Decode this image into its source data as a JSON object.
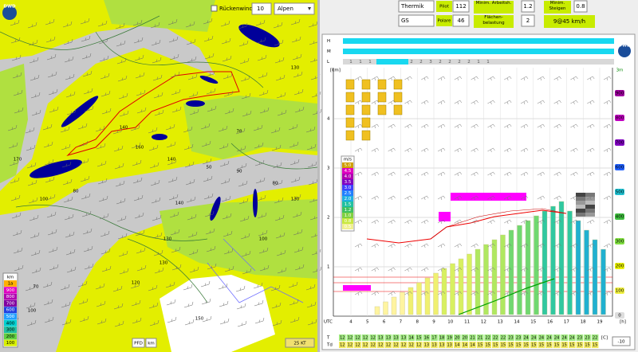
{
  "map": {
    "logo": "DWD",
    "tailwind": "Rückenwind",
    "spinner": "10",
    "region": "Alpen",
    "labels": [
      "80",
      "140",
      "100",
      "130",
      "70",
      "50",
      "170",
      "160",
      "140",
      "130",
      "80",
      "100",
      "150",
      "70",
      "130",
      "130",
      "100",
      "120",
      "140",
      "90"
    ],
    "legend_title": "km",
    "legend_levels": [
      "1a",
      "900",
      "800",
      "700",
      "600",
      "500",
      "400",
      "300",
      "200",
      "100"
    ],
    "pfd": "PFD",
    "unit": "km",
    "scale": "25 KT"
  },
  "toolbar": {
    "mode": "Thermik",
    "pilot_label": "Pilot",
    "pilot": "112",
    "min_work_label": "Minim. Arbeitsh.",
    "min_work": "1.2",
    "min_climb_label": "Minim. Steigen",
    "min_climb": "0.8",
    "glider": "GS",
    "polar_label": "Polare",
    "polar": "46",
    "wing_load_label": "Flächen-belastung",
    "wing_load": "2",
    "result": "9@45 km/h"
  },
  "chart": {
    "logo": "DWD",
    "rows": [
      "H",
      "M",
      "L"
    ],
    "low_cloud": [
      "1",
      "1",
      "1",
      "2",
      "2",
      "3",
      "2",
      "2",
      "2",
      "2",
      "1",
      "1"
    ],
    "y_unit": "[km]",
    "y_labels": [
      "1",
      "2",
      "3",
      "4"
    ],
    "y2_unit": "3m",
    "y2_labels": [
      "900",
      "800",
      "700",
      "600",
      "500",
      "400",
      "300",
      "200",
      "100",
      "0"
    ],
    "x_unit": "UTC",
    "x_labels": [
      "4",
      "5",
      "6",
      "7",
      "8",
      "9",
      "10",
      "11",
      "12",
      "13",
      "14",
      "15",
      "16",
      "17",
      "18",
      "19"
    ],
    "x_end": "[h]",
    "scale_title": "m/s",
    "scale_levels": [
      "5.0",
      "4.5",
      "4.0",
      "3.5",
      "3.0",
      "2.5",
      "2.0",
      "1.5",
      "1.2",
      "1.0",
      "0.8",
      "0.5"
    ],
    "t_label": "T",
    "td_label": "Td",
    "t": [
      "12",
      "12",
      "12",
      "12",
      "12",
      "13",
      "13",
      "13",
      "13",
      "14",
      "15",
      "16",
      "17",
      "18",
      "19",
      "20",
      "20",
      "21",
      "21",
      "22",
      "22",
      "22",
      "23",
      "23",
      "24",
      "24",
      "24",
      "24",
      "24",
      "24",
      "24",
      "23",
      "23",
      "22"
    ],
    "td": [
      "12",
      "12",
      "12",
      "12",
      "12",
      "12",
      "12",
      "12",
      "12",
      "12",
      "12",
      "13",
      "13",
      "13",
      "13",
      "14",
      "14",
      "14",
      "15",
      "15",
      "15",
      "15",
      "15",
      "15",
      "15",
      "15",
      "15",
      "15",
      "15",
      "15",
      "15",
      "15",
      "15",
      "15"
    ],
    "t_unit": "[C]",
    "offset": "-10"
  }
}
